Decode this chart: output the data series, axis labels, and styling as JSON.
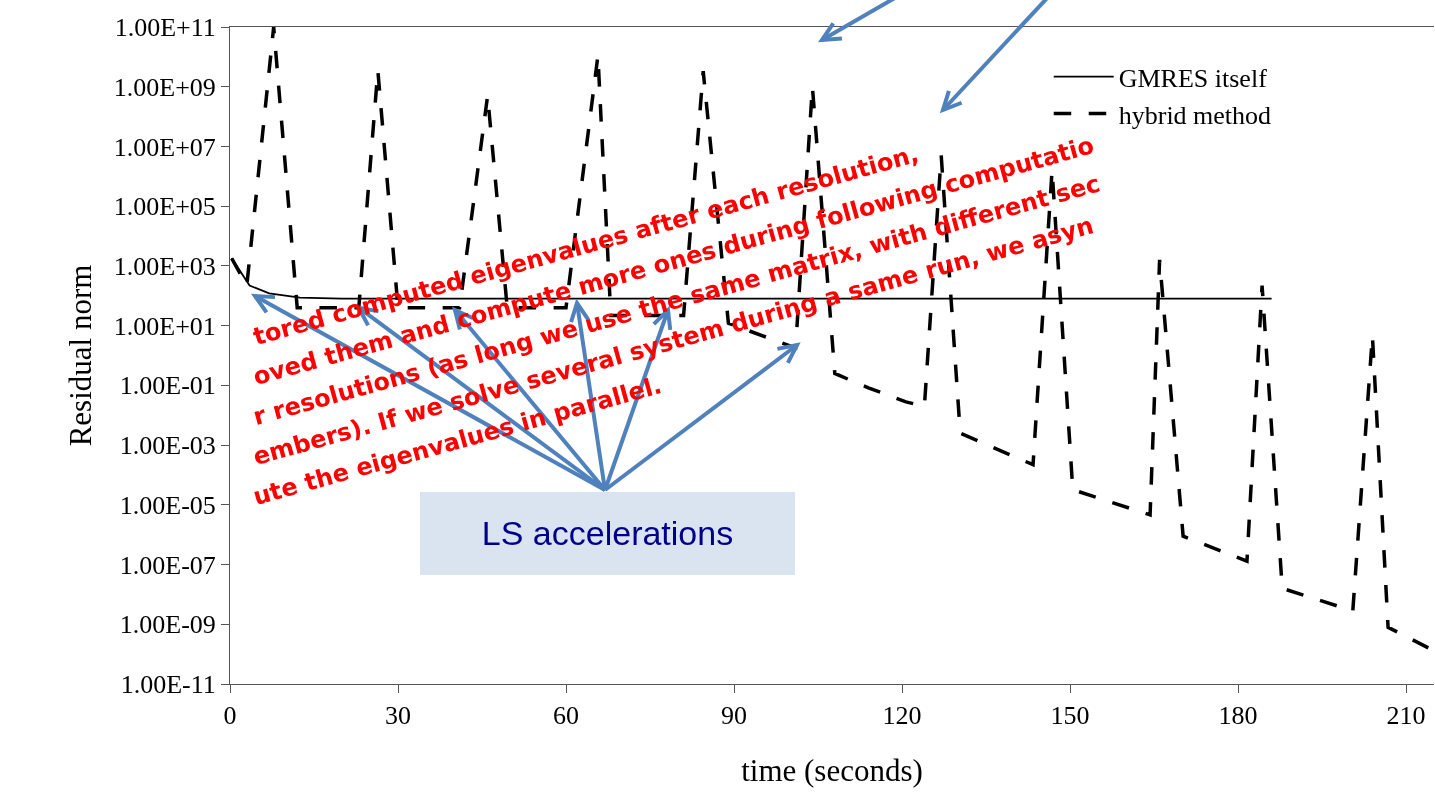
{
  "chart_data": {
    "type": "line",
    "xlabel": "time (seconds)",
    "ylabel": "Residual norm",
    "log": "y",
    "legend": "top right",
    "grid": false,
    "xlim": [
      0,
      215
    ],
    "xticks": [
      0,
      30,
      60,
      90,
      120,
      150,
      180,
      210
    ],
    "ylim": [
      1e-11,
      100000000000.0
    ],
    "yticks": [
      {
        "value": 100000000000.0,
        "label": "1.00E+11"
      },
      {
        "value": 1000000000.0,
        "label": "1.00E+09"
      },
      {
        "value": 10000000.0,
        "label": "1.00E+07"
      },
      {
        "value": 100000.0,
        "label": "1.00E+05"
      },
      {
        "value": 1000.0,
        "label": "1.00E+03"
      },
      {
        "value": 10.0,
        "label": "1.00E+01"
      },
      {
        "value": 0.1,
        "label": "1.00E-01"
      },
      {
        "value": 0.001,
        "label": "1.00E-03"
      },
      {
        "value": 1e-05,
        "label": "1.00E-05"
      },
      {
        "value": 1e-07,
        "label": "1.00E-07"
      },
      {
        "value": 1e-09,
        "label": "1.00E-09"
      },
      {
        "value": 1e-11,
        "label": "1.00E-11"
      }
    ],
    "series": [
      {
        "name": "GMRES itself",
        "color": "#000000",
        "line_style": "solid",
        "x": [
          0.3,
          3.5,
          7,
          12.5,
          20,
          186
        ],
        "values": [
          1800.0,
          220.0,
          120.0,
          87,
          80,
          80
        ]
      },
      {
        "name": "hybrid method",
        "color": "#000000",
        "line_style": "dashed",
        "x": [
          0.3,
          3,
          7.8,
          12,
          23,
          26.4,
          30,
          41,
          46,
          49.5,
          60,
          65.7,
          68,
          81,
          84.5,
          89,
          101,
          104,
          108,
          114,
          120.7,
          124,
          127,
          130.4,
          143.4,
          146.8,
          150.5,
          164.3,
          166,
          170.2,
          181.6,
          184.3,
          187.9,
          200.5,
          204,
          206.8,
          215
        ],
        "values": [
          1800.0,
          220.0,
          100000000000.0,
          40,
          40,
          3500000000.0,
          40,
          40,
          500000000.0,
          40,
          40,
          11000000000.0,
          22,
          22,
          3300000000.0,
          12,
          1.8,
          1000000000.0,
          0.25,
          0.083,
          0.028,
          0.02,
          5000000.0,
          0.0025,
          0.00022,
          1600000.0,
          3.2e-05,
          4.6e-06,
          1600.0,
          8.9e-07,
          1.3e-07,
          220.0,
          1.6e-08,
          2.8e-09,
          4.6,
          7.9e-10,
          1.3e-10
        ]
      }
    ],
    "annotations": [
      {
        "text": "LS accelerations",
        "x": 23,
        "y": 40
      },
      "tored computed eigenvalues after each resolution,",
      "oved them and compute more ones during following computatio",
      "r resolutions (as long we use the same matrix, with different sec",
      "embers). If we solve several system during a same run, we asyn",
      "ute the eigenvalues in parallel."
    ]
  }
}
